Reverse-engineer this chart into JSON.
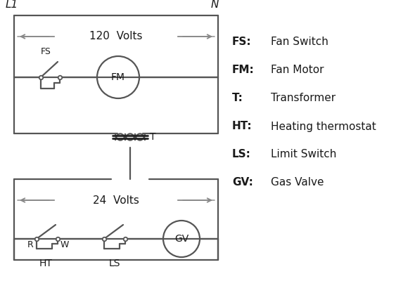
{
  "background_color": "#ffffff",
  "line_color": "#555555",
  "dark_color": "#222222",
  "text_color": "#1a1a1a",
  "legend_items": [
    [
      "FS:",
      "Fan Switch"
    ],
    [
      "FM:",
      "Fan Motor"
    ],
    [
      "T:",
      "Transformer"
    ],
    [
      "HT:",
      "Heating thermostat"
    ],
    [
      "LS:",
      "Limit Switch"
    ],
    [
      "GV:",
      "Gas Valve"
    ]
  ],
  "figsize": [
    5.9,
    4.0
  ],
  "dpi": 100
}
